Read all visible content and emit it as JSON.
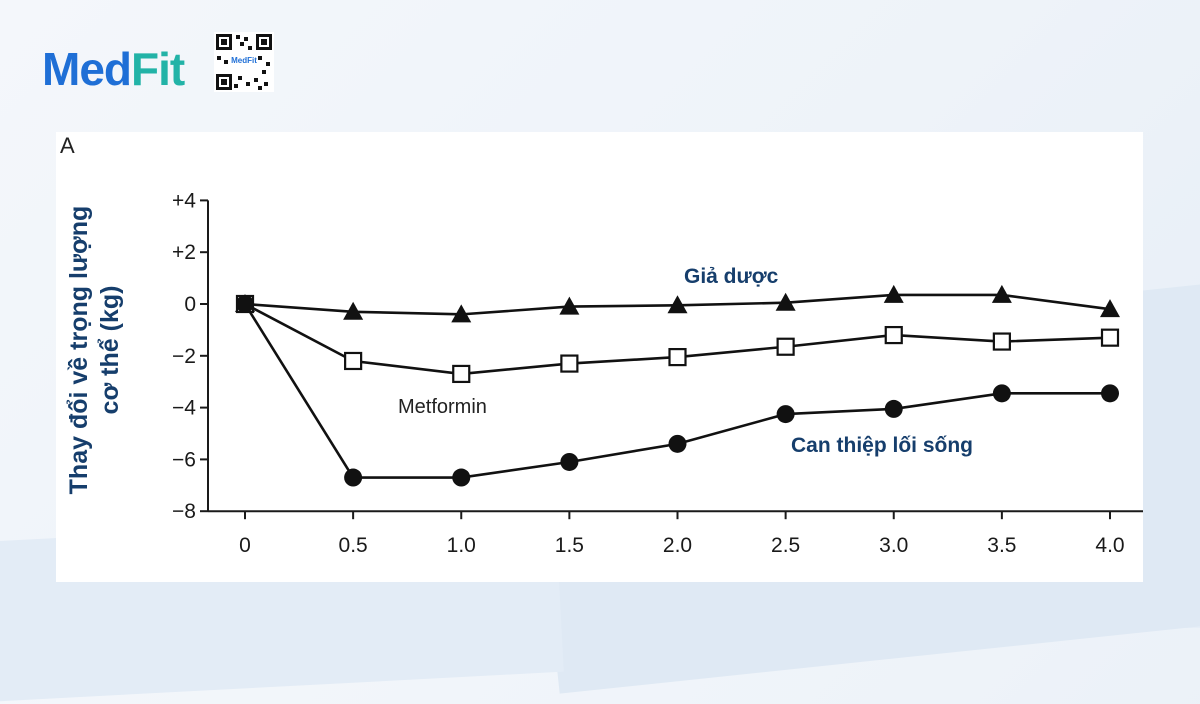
{
  "brand": {
    "logo_part1": "Med",
    "logo_part2": "Fit",
    "qr_label": "MedFit"
  },
  "panel_letter": "A",
  "chart_data": {
    "type": "line",
    "ylabel_line1": "Thay đổi về trọng lượng",
    "ylabel_line2": "cơ thể (kg)",
    "xlabel": "",
    "x": [
      0,
      0.5,
      1.0,
      1.5,
      2.0,
      2.5,
      3.0,
      3.5,
      4.0
    ],
    "x_tick_labels": [
      "0",
      "0.5",
      "1.0",
      "1.5",
      "2.0",
      "2.5",
      "3.0",
      "3.5",
      "4.0"
    ],
    "ylim": [
      -8,
      4
    ],
    "y_ticks": [
      4,
      2,
      0,
      -2,
      -4,
      -6,
      -8
    ],
    "y_tick_labels": [
      "+4",
      "+2",
      "0",
      "−2",
      "−4",
      "−6",
      "−8"
    ],
    "grid": false,
    "series": [
      {
        "name": "Giả dược",
        "marker": "triangle",
        "values": [
          0,
          -0.3,
          -0.4,
          -0.1,
          -0.05,
          0.05,
          0.35,
          0.35,
          -0.2
        ]
      },
      {
        "name": "Metformin",
        "marker": "open-square",
        "values": [
          0,
          -2.2,
          -2.7,
          -2.3,
          -2.05,
          -1.65,
          -1.2,
          -1.45,
          -1.3
        ]
      },
      {
        "name": "Can thiệp lối sống",
        "marker": "filled-circle",
        "values": [
          0,
          -6.7,
          -6.7,
          -6.1,
          -5.4,
          -4.25,
          -4.05,
          -3.45,
          -3.45
        ]
      }
    ]
  },
  "colors": {
    "brand_blue": "#1f6fd6",
    "brand_teal": "#22b3a7",
    "label_navy": "#163e6c"
  }
}
